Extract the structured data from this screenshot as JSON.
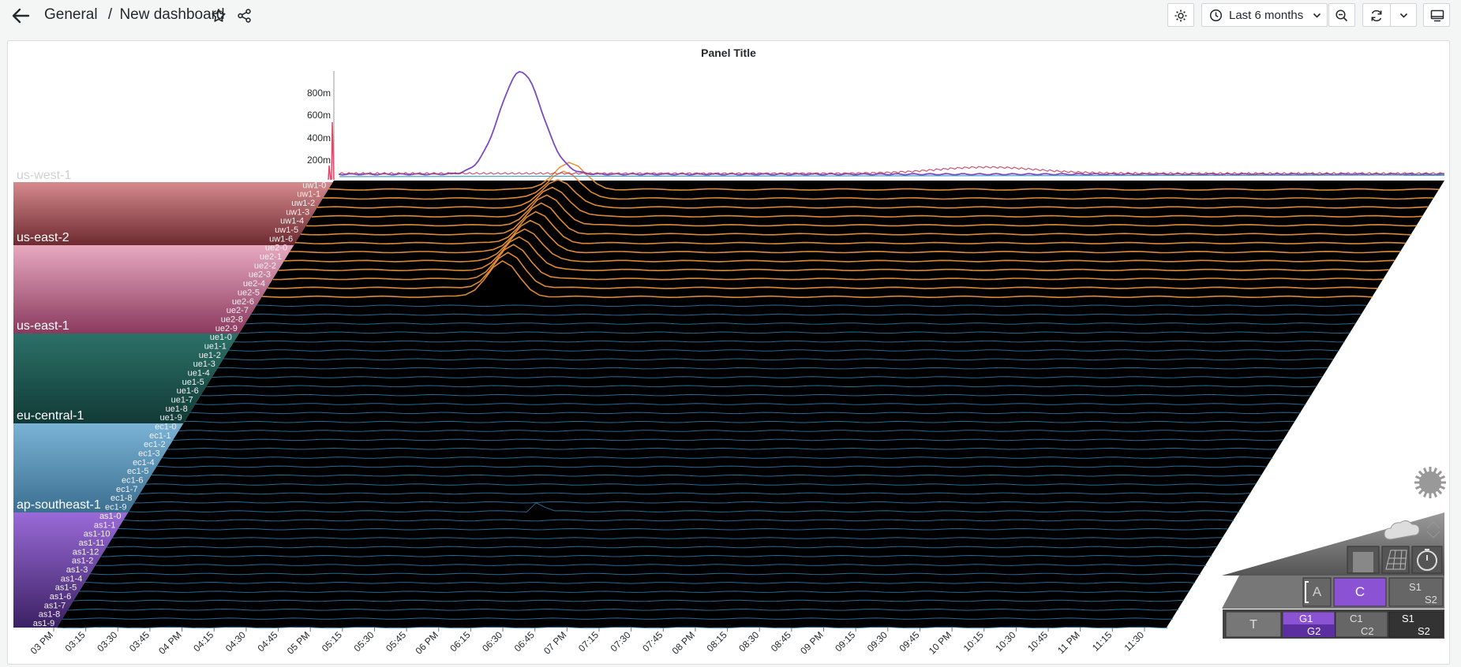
{
  "header": {
    "folder": "General",
    "separator": "/",
    "title": "New dashboard",
    "time_range": "Last 6 months"
  },
  "panel": {
    "title": "Panel Title"
  },
  "chart_data": {
    "type": "line",
    "y_ticks": [
      "200m",
      "400m",
      "600m",
      "800m"
    ],
    "x_ticks": [
      "03 PM",
      "03:15",
      "03:30",
      "03:45",
      "04 PM",
      "04:15",
      "04:30",
      "04:45",
      "05 PM",
      "05:15",
      "05:30",
      "05:45",
      "06 PM",
      "06:15",
      "06:30",
      "06:45",
      "07 PM",
      "07:15",
      "07:30",
      "07:45",
      "08 PM",
      "08:15",
      "08:30",
      "08:45",
      "09 PM",
      "09:15",
      "09:30",
      "09:45",
      "10 PM",
      "10:15",
      "10:30",
      "10:45",
      "11 PM",
      "11:15",
      "11:30"
    ],
    "groups": [
      {
        "name": "us-west-1",
        "color": "#ffffff"
      },
      {
        "name": "us-east-2",
        "color": "#b85a60"
      },
      {
        "name": "us-east-1",
        "color": "#c7708f"
      },
      {
        "name": "eu-central-1",
        "color": "#1d5b55"
      },
      {
        "name": "ap-southeast-1",
        "color": "#5b93b5"
      },
      {
        "name": "",
        "color": "#6a43a3"
      }
    ],
    "series": [
      "uw1-0",
      "uw1-1",
      "uw1-2",
      "uw1-3",
      "uw1-4",
      "uw1-5",
      "uw1-6",
      "ue2-0",
      "ue2-1",
      "ue2-2",
      "ue2-3",
      "ue2-4",
      "ue2-5",
      "ue2-6",
      "ue2-7",
      "ue2-8",
      "ue2-9",
      "ue1-0",
      "ue1-1",
      "ue1-2",
      "ue1-3",
      "ue1-4",
      "ue1-5",
      "ue1-6",
      "ue1-7",
      "ue1-8",
      "ue1-9",
      "ec1-0",
      "ec1-1",
      "ec1-2",
      "ec1-3",
      "ec1-4",
      "ec1-5",
      "ec1-6",
      "ec1-7",
      "ec1-8",
      "ec1-9",
      "as1-0",
      "as1-1",
      "as1-10",
      "as1-11",
      "as1-12",
      "as1-2",
      "as1-3",
      "as1-4",
      "as1-5",
      "as1-6",
      "as1-7",
      "as1-8",
      "as1-9"
    ],
    "grid": false
  },
  "controls": {
    "t_label": "T",
    "g1": "G1",
    "g2": "G2",
    "c1": "C1",
    "c2": "C2",
    "s1": "S1",
    "s2": "S2",
    "a_label": "A",
    "c_label": "C",
    "s1b": "S1",
    "s2b": "S2"
  },
  "colors": {
    "accent": "#8c52d4",
    "plot_bg": "#000000",
    "line": "#2c7cb0"
  }
}
